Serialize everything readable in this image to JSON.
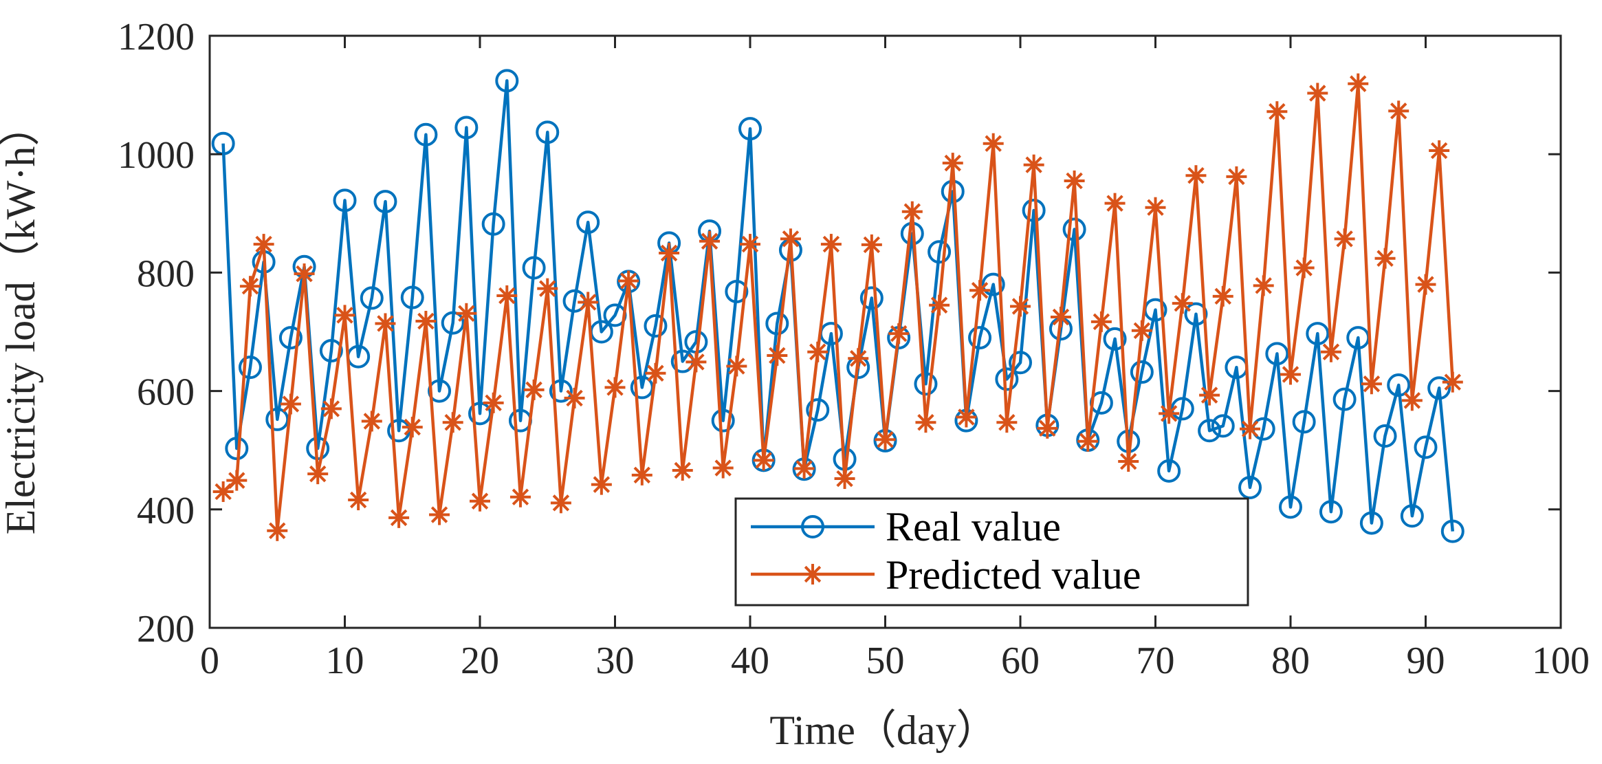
{
  "chart_data": {
    "type": "line",
    "title": "",
    "xlabel": "Time（day）",
    "ylabel": "Electricity load（kW·h）",
    "xlim": [
      0,
      100
    ],
    "ylim": [
      200,
      1200
    ],
    "xticks": [
      "0",
      "10",
      "20",
      "30",
      "40",
      "50",
      "60",
      "70",
      "80",
      "90",
      "100"
    ],
    "yticks": [
      "200",
      "400",
      "600",
      "800",
      "1000",
      "1200"
    ],
    "grid": false,
    "legend_position": "bottom-center",
    "x": [
      1,
      2,
      3,
      4,
      5,
      6,
      7,
      8,
      9,
      10,
      11,
      12,
      13,
      14,
      15,
      16,
      17,
      18,
      19,
      20,
      21,
      22,
      23,
      24,
      25,
      26,
      27,
      28,
      29,
      30,
      31,
      32,
      33,
      34,
      35,
      36,
      37,
      38,
      39,
      40,
      41,
      42,
      43,
      44,
      45,
      46,
      47,
      48,
      49,
      50,
      51,
      52,
      53,
      54,
      55,
      56,
      57,
      58,
      59,
      60,
      61,
      62,
      63,
      64,
      65,
      66,
      67,
      68,
      69,
      70,
      71,
      72,
      73,
      74,
      75,
      76,
      77,
      78,
      79,
      80,
      81,
      82,
      83,
      84,
      85,
      86,
      87,
      88,
      89,
      90,
      91,
      92
    ],
    "series": [
      {
        "name": "Real value",
        "color": "#0072BD",
        "marker": "circle",
        "values": [
          1018,
          503,
          640,
          818,
          552,
          690,
          810,
          503,
          668,
          922,
          658,
          757,
          920,
          533,
          758,
          1033,
          600,
          715,
          1045,
          562,
          882,
          1124,
          550,
          808,
          1037,
          600,
          752,
          885,
          700,
          728,
          785,
          606,
          710,
          850,
          650,
          683,
          870,
          550,
          768,
          1043,
          483,
          714,
          838,
          468,
          568,
          697,
          485,
          640,
          757,
          516,
          690,
          866,
          612,
          835,
          937,
          550,
          690,
          780,
          620,
          648,
          905,
          542,
          705,
          873,
          517,
          580,
          688,
          515,
          632,
          737,
          465,
          570,
          730,
          533,
          541,
          640,
          437,
          536,
          663,
          404,
          548,
          697,
          396,
          586,
          690,
          377,
          524,
          610,
          389,
          505,
          605,
          363
        ]
      },
      {
        "name": "Predicted value",
        "color": "#D95319",
        "marker": "asterisk",
        "values": [
          430,
          449,
          777,
          848,
          364,
          578,
          798,
          460,
          570,
          728,
          416,
          549,
          714,
          386,
          539,
          718,
          391,
          547,
          731,
          414,
          580,
          761,
          421,
          602,
          773,
          411,
          588,
          750,
          442,
          606,
          786,
          458,
          630,
          833,
          466,
          649,
          853,
          470,
          642,
          848,
          483,
          660,
          857,
          469,
          666,
          848,
          452,
          655,
          847,
          518,
          697,
          903,
          547,
          745,
          985,
          556,
          770,
          1018,
          547,
          743,
          982,
          537,
          725,
          955,
          515,
          717,
          917,
          481,
          702,
          910,
          562,
          748,
          964,
          593,
          760,
          962,
          536,
          778,
          1072,
          628,
          808,
          1103,
          666,
          857,
          1119,
          612,
          824,
          1073,
          584,
          780,
          1006,
          615
        ]
      }
    ]
  }
}
